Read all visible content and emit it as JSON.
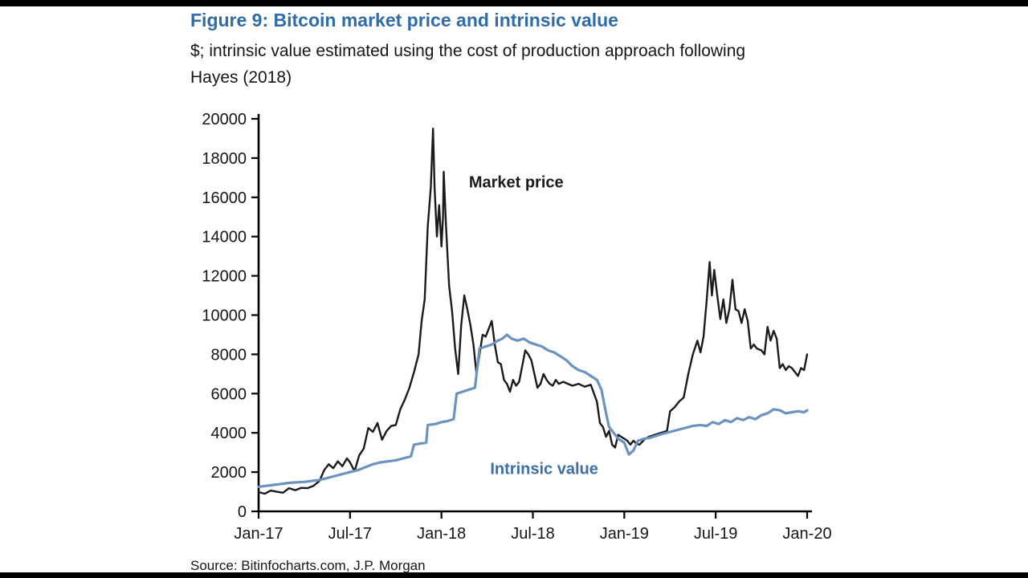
{
  "header": {
    "title": "Figure 9: Bitcoin market price and intrinsic value",
    "subtitle_line1": "$; intrinsic value estimated using the cost of production approach following",
    "subtitle_line2": "Hayes (2018)",
    "title_color": "#2e6cab"
  },
  "footer": {
    "source": "Source: Bitinfocharts.com, J.P. Morgan"
  },
  "chart_data": {
    "type": "line",
    "title": "Figure 9: Bitcoin market price and intrinsic value",
    "xlabel": "",
    "ylabel": "$",
    "ylim": [
      0,
      20000
    ],
    "xlim": [
      0,
      36
    ],
    "grid": false,
    "legend_position": "inline-annotations",
    "axis_color": "#000000",
    "y_ticks": [
      0,
      2000,
      4000,
      6000,
      8000,
      10000,
      12000,
      14000,
      16000,
      18000,
      20000
    ],
    "x_ticks": [
      {
        "pos": 0,
        "label": "Jan-17"
      },
      {
        "pos": 6,
        "label": "Jul-17"
      },
      {
        "pos": 12,
        "label": "Jan-18"
      },
      {
        "pos": 18,
        "label": "Jul-18"
      },
      {
        "pos": 24,
        "label": "Jan-19"
      },
      {
        "pos": 30,
        "label": "Jul-19"
      },
      {
        "pos": 36,
        "label": "Jan-20"
      }
    ],
    "series": [
      {
        "name": "Market price",
        "color": "#1b1b1b",
        "label_color": "#1b1b1b",
        "stroke_width": 2.4,
        "label_pos": {
          "x": 13.8,
          "y": 16500
        },
        "points": [
          [
            0,
            980
          ],
          [
            0.4,
            900
          ],
          [
            0.8,
            1060
          ],
          [
            1.2,
            1000
          ],
          [
            1.6,
            950
          ],
          [
            2,
            1180
          ],
          [
            2.4,
            1080
          ],
          [
            2.8,
            1200
          ],
          [
            3.2,
            1180
          ],
          [
            3.6,
            1300
          ],
          [
            4,
            1550
          ],
          [
            4.3,
            2100
          ],
          [
            4.6,
            2400
          ],
          [
            4.9,
            2200
          ],
          [
            5.2,
            2550
          ],
          [
            5.5,
            2300
          ],
          [
            5.8,
            2700
          ],
          [
            6,
            2500
          ],
          [
            6.3,
            2050
          ],
          [
            6.6,
            2850
          ],
          [
            6.9,
            3200
          ],
          [
            7.2,
            4250
          ],
          [
            7.5,
            4050
          ],
          [
            7.8,
            4500
          ],
          [
            8.1,
            3650
          ],
          [
            8.4,
            4100
          ],
          [
            8.7,
            4350
          ],
          [
            9,
            4400
          ],
          [
            9.3,
            5200
          ],
          [
            9.6,
            5700
          ],
          [
            9.9,
            6300
          ],
          [
            10.2,
            7100
          ],
          [
            10.5,
            8000
          ],
          [
            10.7,
            9700
          ],
          [
            10.9,
            10800
          ],
          [
            11.1,
            14500
          ],
          [
            11.3,
            16500
          ],
          [
            11.45,
            19500
          ],
          [
            11.55,
            16500
          ],
          [
            11.7,
            14000
          ],
          [
            11.85,
            15600
          ],
          [
            12,
            13500
          ],
          [
            12.1,
            15000
          ],
          [
            12.15,
            17300
          ],
          [
            12.3,
            14500
          ],
          [
            12.5,
            11500
          ],
          [
            12.7,
            10200
          ],
          [
            12.9,
            8300
          ],
          [
            13.1,
            7000
          ],
          [
            13.3,
            9500
          ],
          [
            13.5,
            11000
          ],
          [
            13.7,
            10300
          ],
          [
            13.9,
            9500
          ],
          [
            14.1,
            8500
          ],
          [
            14.3,
            7000
          ],
          [
            14.5,
            8000
          ],
          [
            14.7,
            9000
          ],
          [
            14.9,
            8900
          ],
          [
            15.1,
            9300
          ],
          [
            15.3,
            9700
          ],
          [
            15.5,
            8500
          ],
          [
            15.7,
            7600
          ],
          [
            15.9,
            7500
          ],
          [
            16.1,
            6700
          ],
          [
            16.3,
            6500
          ],
          [
            16.5,
            6100
          ],
          [
            16.7,
            6700
          ],
          [
            16.9,
            6400
          ],
          [
            17.1,
            6600
          ],
          [
            17.3,
            7400
          ],
          [
            17.5,
            8200
          ],
          [
            17.7,
            8000
          ],
          [
            17.9,
            7700
          ],
          [
            18.1,
            7000
          ],
          [
            18.3,
            6300
          ],
          [
            18.5,
            6500
          ],
          [
            18.7,
            7000
          ],
          [
            18.9,
            6700
          ],
          [
            19.1,
            6500
          ],
          [
            19.3,
            6400
          ],
          [
            19.5,
            6700
          ],
          [
            19.7,
            6500
          ],
          [
            20,
            6600
          ],
          [
            20.3,
            6500
          ],
          [
            20.6,
            6400
          ],
          [
            21,
            6500
          ],
          [
            21.4,
            6350
          ],
          [
            21.8,
            6450
          ],
          [
            22.2,
            5600
          ],
          [
            22.4,
            4500
          ],
          [
            22.6,
            4300
          ],
          [
            22.8,
            3800
          ],
          [
            23,
            4100
          ],
          [
            23.2,
            3400
          ],
          [
            23.4,
            3250
          ],
          [
            23.6,
            3900
          ],
          [
            23.8,
            3800
          ],
          [
            24,
            3700
          ],
          [
            24.2,
            3600
          ],
          [
            24.4,
            3400
          ],
          [
            24.6,
            3600
          ],
          [
            24.8,
            3450
          ],
          [
            25,
            3400
          ],
          [
            25.3,
            3650
          ],
          [
            25.6,
            3800
          ],
          [
            26,
            3900
          ],
          [
            26.4,
            4000
          ],
          [
            26.8,
            4100
          ],
          [
            27,
            5100
          ],
          [
            27.3,
            5300
          ],
          [
            27.6,
            5600
          ],
          [
            27.9,
            5800
          ],
          [
            28.2,
            7000
          ],
          [
            28.5,
            8000
          ],
          [
            28.8,
            8700
          ],
          [
            29,
            8100
          ],
          [
            29.2,
            8900
          ],
          [
            29.4,
            10700
          ],
          [
            29.6,
            12700
          ],
          [
            29.75,
            11000
          ],
          [
            29.9,
            12300
          ],
          [
            30.1,
            11000
          ],
          [
            30.3,
            9800
          ],
          [
            30.5,
            10800
          ],
          [
            30.7,
            9600
          ],
          [
            30.9,
            10300
          ],
          [
            31.1,
            11800
          ],
          [
            31.3,
            10300
          ],
          [
            31.5,
            10200
          ],
          [
            31.7,
            9600
          ],
          [
            31.9,
            10300
          ],
          [
            32.1,
            9700
          ],
          [
            32.3,
            8300
          ],
          [
            32.5,
            8500
          ],
          [
            32.7,
            8300
          ],
          [
            33,
            8200
          ],
          [
            33.2,
            8000
          ],
          [
            33.4,
            9400
          ],
          [
            33.6,
            8700
          ],
          [
            33.8,
            9200
          ],
          [
            34,
            8800
          ],
          [
            34.2,
            7300
          ],
          [
            34.4,
            7500
          ],
          [
            34.6,
            7200
          ],
          [
            34.8,
            7400
          ],
          [
            35,
            7300
          ],
          [
            35.2,
            7100
          ],
          [
            35.4,
            6900
          ],
          [
            35.6,
            7300
          ],
          [
            35.8,
            7200
          ],
          [
            36,
            8000
          ]
        ]
      },
      {
        "name": "Intrinsic value",
        "color": "#6a93c0",
        "label_color": "#3d6fa5",
        "stroke_width": 3.2,
        "label_pos": {
          "x": 15.2,
          "y": 1900
        },
        "points": [
          [
            0,
            1250
          ],
          [
            0.5,
            1300
          ],
          [
            1,
            1350
          ],
          [
            1.5,
            1400
          ],
          [
            2,
            1450
          ],
          [
            2.5,
            1480
          ],
          [
            3,
            1500
          ],
          [
            3.5,
            1550
          ],
          [
            4,
            1600
          ],
          [
            4.5,
            1700
          ],
          [
            5,
            1800
          ],
          [
            5.5,
            1900
          ],
          [
            6,
            2000
          ],
          [
            6.5,
            2100
          ],
          [
            7,
            2250
          ],
          [
            7.5,
            2400
          ],
          [
            8,
            2500
          ],
          [
            8.5,
            2550
          ],
          [
            9,
            2600
          ],
          [
            9.5,
            2700
          ],
          [
            10,
            2800
          ],
          [
            10.2,
            3400
          ],
          [
            10.6,
            3450
          ],
          [
            11,
            3500
          ],
          [
            11.1,
            4400
          ],
          [
            11.6,
            4450
          ],
          [
            12,
            4550
          ],
          [
            12.4,
            4600
          ],
          [
            12.8,
            4700
          ],
          [
            13,
            6000
          ],
          [
            13.4,
            6100
          ],
          [
            13.8,
            6200
          ],
          [
            14.2,
            6300
          ],
          [
            14.5,
            8300
          ],
          [
            14.9,
            8400
          ],
          [
            15.3,
            8500
          ],
          [
            15.7,
            8700
          ],
          [
            16,
            8800
          ],
          [
            16.3,
            9000
          ],
          [
            16.6,
            8800
          ],
          [
            17,
            8700
          ],
          [
            17.4,
            8800
          ],
          [
            17.8,
            8600
          ],
          [
            18.2,
            8500
          ],
          [
            18.6,
            8400
          ],
          [
            19,
            8200
          ],
          [
            19.4,
            8100
          ],
          [
            19.8,
            7900
          ],
          [
            20.2,
            7700
          ],
          [
            20.6,
            7400
          ],
          [
            21,
            7200
          ],
          [
            21.4,
            7100
          ],
          [
            21.8,
            6900
          ],
          [
            22.2,
            6700
          ],
          [
            22.5,
            6200
          ],
          [
            22.8,
            5000
          ],
          [
            23,
            4300
          ],
          [
            23.3,
            4000
          ],
          [
            23.6,
            3700
          ],
          [
            24,
            3500
          ],
          [
            24.3,
            2900
          ],
          [
            24.6,
            3100
          ],
          [
            24.9,
            3600
          ],
          [
            25.3,
            3700
          ],
          [
            25.7,
            3750
          ],
          [
            26.1,
            3850
          ],
          [
            26.5,
            3950
          ],
          [
            27,
            4050
          ],
          [
            27.5,
            4150
          ],
          [
            28,
            4250
          ],
          [
            28.5,
            4350
          ],
          [
            29,
            4400
          ],
          [
            29.4,
            4350
          ],
          [
            29.8,
            4550
          ],
          [
            30.2,
            4450
          ],
          [
            30.6,
            4650
          ],
          [
            31,
            4550
          ],
          [
            31.4,
            4750
          ],
          [
            31.8,
            4650
          ],
          [
            32.2,
            4800
          ],
          [
            32.6,
            4700
          ],
          [
            33,
            4900
          ],
          [
            33.4,
            5000
          ],
          [
            33.8,
            5200
          ],
          [
            34.2,
            5150
          ],
          [
            34.6,
            5000
          ],
          [
            35,
            5050
          ],
          [
            35.4,
            5100
          ],
          [
            35.8,
            5050
          ],
          [
            36,
            5150
          ]
        ]
      }
    ]
  }
}
